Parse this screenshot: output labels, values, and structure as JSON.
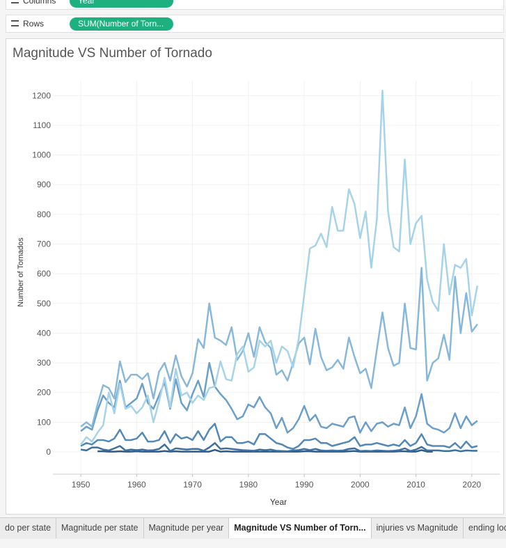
{
  "shelves": {
    "columns": {
      "label": "Columns",
      "pill": "Year"
    },
    "rows": {
      "label": "Rows",
      "pill": "SUM(Number of Torn..."
    }
  },
  "tabs": [
    "do per state",
    "Magnitude per state",
    "Magnitude per year",
    "Magnitude VS Number of Torn...",
    "injuries vs Magnitude",
    "ending loca"
  ],
  "active_tab": 3,
  "chart_data": {
    "type": "line",
    "title": "Magnitude VS Number of Tornado",
    "x_label": "Year",
    "y_label": "Number of Tornados",
    "x": [
      1950,
      1951,
      1952,
      1953,
      1954,
      1955,
      1956,
      1957,
      1958,
      1959,
      1960,
      1961,
      1962,
      1963,
      1964,
      1965,
      1966,
      1967,
      1968,
      1969,
      1970,
      1971,
      1972,
      1973,
      1974,
      1975,
      1976,
      1977,
      1978,
      1979,
      1980,
      1981,
      1982,
      1983,
      1984,
      1985,
      1986,
      1987,
      1988,
      1989,
      1990,
      1991,
      1992,
      1993,
      1994,
      1995,
      1996,
      1997,
      1998,
      1999,
      2000,
      2001,
      2002,
      2003,
      2004,
      2005,
      2006,
      2007,
      2008,
      2009,
      2010,
      2011,
      2012,
      2013,
      2014,
      2015,
      2016,
      2017,
      2018,
      2019,
      2020,
      2021
    ],
    "xlim": [
      1945,
      2025
    ],
    "xticks": [
      1950,
      1960,
      1970,
      1980,
      1990,
      2000,
      2010,
      2020
    ],
    "ylim": [
      -75,
      1250
    ],
    "yticks": [
      0,
      100,
      200,
      300,
      400,
      500,
      600,
      700,
      800,
      900,
      1000,
      1100,
      1200
    ],
    "grid": true,
    "series": [
      {
        "color": "#2c5a8a",
        "values": [
          null,
          null,
          null,
          2,
          2,
          1,
          1,
          2,
          1,
          1,
          2,
          1,
          1,
          1,
          1,
          3,
          1,
          2,
          1,
          1,
          1,
          1,
          1,
          1,
          7,
          1,
          2,
          1,
          1,
          1,
          1,
          1,
          1,
          1,
          1,
          1,
          1,
          1,
          1,
          1,
          2,
          2,
          1,
          1,
          1,
          1,
          1,
          1,
          2,
          3,
          1,
          1,
          1,
          1,
          1,
          1,
          1,
          2,
          2,
          1,
          1,
          6,
          1,
          1,
          null,
          null,
          null,
          null,
          null,
          null,
          null,
          null
        ]
      },
      {
        "color": "#3d6fa0",
        "values": [
          8,
          5,
          15,
          15,
          8,
          5,
          12,
          20,
          5,
          8,
          6,
          8,
          5,
          6,
          10,
          25,
          3,
          12,
          10,
          8,
          10,
          10,
          4,
          15,
          30,
          10,
          12,
          10,
          8,
          6,
          5,
          4,
          8,
          6,
          8,
          4,
          3,
          2,
          5,
          6,
          10,
          6,
          10,
          5,
          4,
          5,
          4,
          5,
          10,
          12,
          3,
          4,
          3,
          5,
          4,
          3,
          4,
          6,
          12,
          3,
          8,
          17,
          5,
          5,
          5,
          3,
          3,
          6,
          2,
          5,
          4,
          4
        ]
      },
      {
        "color": "#5288b8",
        "values": [
          20,
          30,
          25,
          40,
          40,
          35,
          45,
          75,
          40,
          40,
          45,
          65,
          35,
          35,
          40,
          70,
          30,
          60,
          45,
          50,
          40,
          70,
          40,
          75,
          95,
          35,
          50,
          50,
          30,
          30,
          35,
          25,
          60,
          60,
          45,
          30,
          25,
          15,
          10,
          20,
          40,
          40,
          45,
          30,
          30,
          20,
          25,
          30,
          35,
          50,
          20,
          25,
          25,
          30,
          25,
          20,
          25,
          20,
          40,
          20,
          30,
          60,
          25,
          20,
          20,
          20,
          15,
          30,
          12,
          35,
          15,
          20
        ]
      },
      {
        "color": "#6b9fc9",
        "values": [
          70,
          85,
          75,
          140,
          190,
          165,
          150,
          240,
          150,
          165,
          180,
          230,
          165,
          145,
          190,
          235,
          145,
          245,
          165,
          140,
          195,
          240,
          185,
          300,
          220,
          195,
          175,
          145,
          110,
          120,
          160,
          150,
          185,
          150,
          130,
          80,
          115,
          65,
          80,
          110,
          155,
          105,
          125,
          85,
          80,
          95,
          90,
          85,
          115,
          120,
          65,
          100,
          70,
          95,
          100,
          85,
          95,
          90,
          150,
          80,
          120,
          195,
          95,
          80,
          75,
          65,
          80,
          130,
          80,
          120,
          90,
          105
        ]
      },
      {
        "color": "#88b8d9",
        "values": [
          85,
          100,
          85,
          160,
          225,
          215,
          180,
          305,
          235,
          260,
          260,
          245,
          265,
          180,
          270,
          300,
          240,
          325,
          255,
          220,
          265,
          380,
          350,
          500,
          385,
          375,
          360,
          420,
          310,
          340,
          400,
          320,
          420,
          370,
          350,
          260,
          275,
          240,
          300,
          365,
          385,
          295,
          415,
          320,
          275,
          285,
          310,
          280,
          385,
          320,
          265,
          280,
          215,
          345,
          470,
          350,
          290,
          300,
          500,
          350,
          345,
          620,
          240,
          300,
          315,
          395,
          310,
          590,
          400,
          535,
          405,
          430
        ]
      },
      {
        "color": "#a6d3e8",
        "values": [
          25,
          50,
          35,
          65,
          90,
          200,
          130,
          230,
          145,
          155,
          130,
          150,
          190,
          100,
          170,
          250,
          150,
          280,
          190,
          200,
          165,
          190,
          175,
          215,
          220,
          305,
          245,
          240,
          330,
          355,
          270,
          285,
          375,
          355,
          375,
          300,
          355,
          340,
          285,
          380,
          530,
          685,
          695,
          735,
          690,
          825,
          745,
          745,
          885,
          835,
          720,
          810,
          620,
          785,
          1217,
          810,
          690,
          675,
          985,
          700,
          770,
          795,
          580,
          505,
          475,
          700,
          530,
          630,
          620,
          650,
          460,
          560
        ]
      }
    ]
  }
}
